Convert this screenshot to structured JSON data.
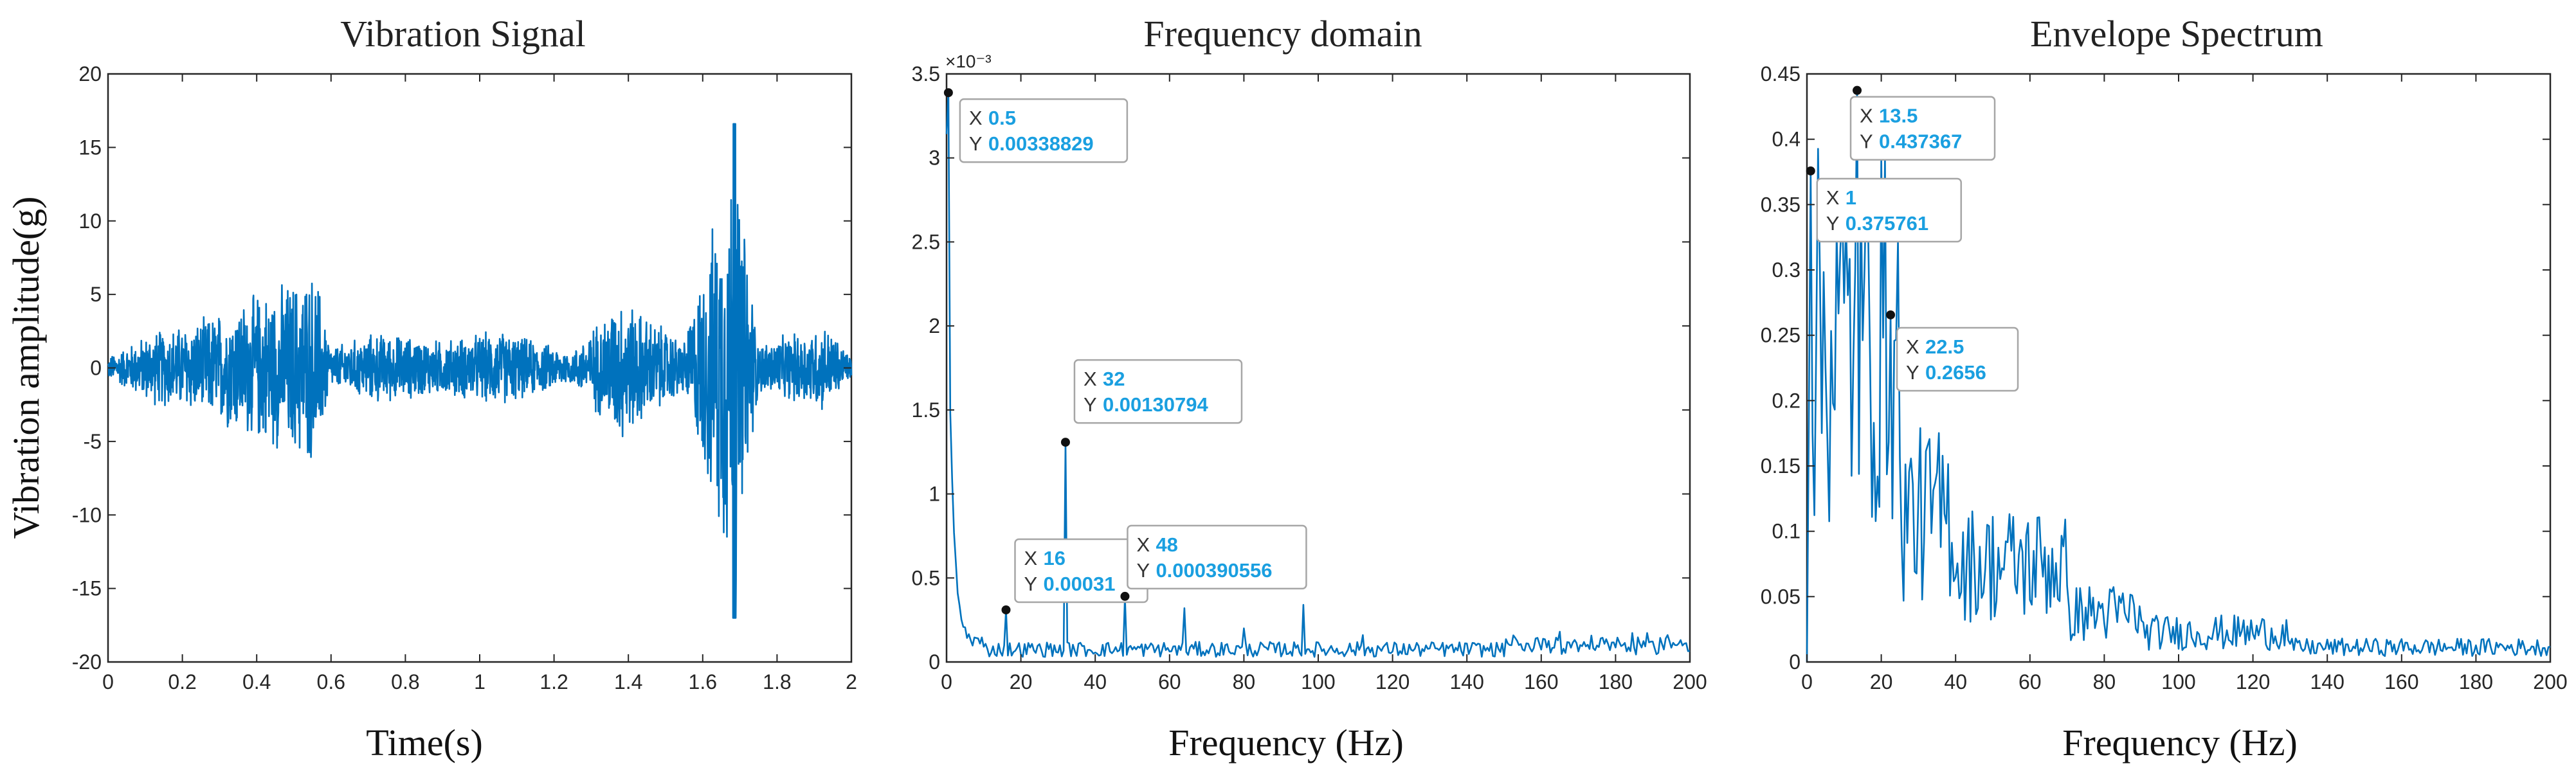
{
  "chart_data": [
    {
      "id": "vibration",
      "type": "line",
      "title": "Vibration Signal",
      "xlabel": "Time(s)",
      "ylabel": "Vibration amplitude(g)",
      "xlim": [
        0,
        2
      ],
      "ylim": [
        -20,
        20
      ],
      "xticks": [
        0,
        0.2,
        0.4,
        0.6,
        0.8,
        1,
        1.2,
        1.4,
        1.6,
        1.8,
        2
      ],
      "xticklabels": [
        "0",
        "0.2",
        "0.4",
        "0.6",
        "0.8",
        "1",
        "1.2",
        "1.4",
        "1.6",
        "1.8",
        "2"
      ],
      "yticks": [
        -20,
        -15,
        -10,
        -5,
        0,
        5,
        10,
        15,
        20
      ],
      "yticklabels": [
        "-20",
        "-15",
        "-10",
        "-5",
        "0",
        "5",
        "10",
        "15",
        "20"
      ],
      "series_color": "#0072bd",
      "envelope": [
        {
          "t": 0.0,
          "amp": 0.8
        },
        {
          "t": 0.12,
          "amp": 2.7
        },
        {
          "t": 0.25,
          "amp": 3.5
        },
        {
          "t": 0.36,
          "amp": 5.0
        },
        {
          "t": 0.56,
          "amp": 7.2
        },
        {
          "t": 0.6,
          "amp": 1.5
        },
        {
          "t": 0.72,
          "amp": 2.6
        },
        {
          "t": 0.9,
          "amp": 2.0
        },
        {
          "t": 1.05,
          "amp": 2.8
        },
        {
          "t": 1.25,
          "amp": 1.2
        },
        {
          "t": 1.38,
          "amp": 5.5
        },
        {
          "t": 1.43,
          "amp": 4.2
        },
        {
          "t": 1.55,
          "amp": 2.0
        },
        {
          "t": 1.685,
          "amp": 16.6
        },
        {
          "t": 1.75,
          "amp": 1.8
        },
        {
          "t": 1.93,
          "amp": 3.2
        },
        {
          "t": 2.0,
          "amp": 0.8
        }
      ]
    },
    {
      "id": "frequency",
      "type": "line",
      "title": "Frequency domain",
      "xlabel": "Frequency (Hz)",
      "ylabel": "",
      "y_multiplier": "×10⁻³",
      "xlim": [
        0,
        200
      ],
      "ylim": [
        0,
        0.0035
      ],
      "xticks": [
        0,
        20,
        40,
        60,
        80,
        100,
        120,
        140,
        160,
        180,
        200
      ],
      "xticklabels": [
        "0",
        "20",
        "40",
        "60",
        "80",
        "100",
        "120",
        "140",
        "160",
        "180",
        "200"
      ],
      "yticks": [
        0,
        0.0005,
        0.001,
        0.0015,
        0.002,
        0.0025,
        0.003,
        0.0035
      ],
      "yticklabels": [
        "0",
        "0.5",
        "1",
        "1.5",
        "2",
        "2.5",
        "3",
        "3.5"
      ],
      "series_color": "#0072bd",
      "peaks": [
        {
          "x": 0.5,
          "y": 0.00338829
        },
        {
          "x": 16,
          "y": 0.00031
        },
        {
          "x": 32,
          "y": 0.00130794
        },
        {
          "x": 48,
          "y": 0.000390556
        },
        {
          "x": 64,
          "y": 0.00032
        },
        {
          "x": 80,
          "y": 0.0002
        },
        {
          "x": 96,
          "y": 0.00034
        },
        {
          "x": 112,
          "y": 0.00016
        },
        {
          "x": 165,
          "y": 0.00018
        },
        {
          "x": 176,
          "y": 0.00014
        },
        {
          "x": 194,
          "y": 0.00016
        }
      ],
      "datatips": [
        {
          "x_label": "X",
          "x_value": "0.5",
          "y_label": "Y",
          "y_value": "0.00338829",
          "x": 0.5,
          "y": 0.00338829
        },
        {
          "x_label": "X",
          "x_value": "32",
          "y_label": "Y",
          "y_value": "0.00130794",
          "x": 32,
          "y": 0.00130794
        },
        {
          "x_label": "X",
          "x_value": "16",
          "y_label": "Y",
          "y_value": "0.00031",
          "x": 16,
          "y": 0.00031
        },
        {
          "x_label": "X",
          "x_value": "48",
          "y_label": "Y",
          "y_value": "0.000390556",
          "x": 48,
          "y": 0.000390556
        }
      ]
    },
    {
      "id": "envelope",
      "type": "line",
      "title": "Envelope Spectrum",
      "xlabel": "Frequency (Hz)",
      "ylabel": "",
      "xlim": [
        0,
        200
      ],
      "ylim": [
        0,
        0.45
      ],
      "xticks": [
        0,
        20,
        40,
        60,
        80,
        100,
        120,
        140,
        160,
        180,
        200
      ],
      "xticklabels": [
        "0",
        "20",
        "40",
        "60",
        "80",
        "100",
        "120",
        "140",
        "160",
        "180",
        "200"
      ],
      "yticks": [
        0,
        0.05,
        0.1,
        0.15,
        0.2,
        0.25,
        0.3,
        0.35,
        0.4,
        0.45
      ],
      "yticklabels": [
        "0",
        "0.05",
        "0.1",
        "0.15",
        "0.2",
        "0.25",
        "0.3",
        "0.35",
        "0.4",
        "0.45"
      ],
      "series_color": "#0072bd",
      "datatips": [
        {
          "x_label": "X",
          "x_value": "13.5",
          "y_label": "Y",
          "y_value": "0.437367",
          "x": 13.5,
          "y": 0.437367
        },
        {
          "x_label": "X",
          "x_value": "1",
          "y_label": "Y",
          "y_value": "0.375761",
          "x": 1,
          "y": 0.375761
        },
        {
          "x_label": "X",
          "x_value": "22.5",
          "y_label": "Y",
          "y_value": "0.2656",
          "x": 22.5,
          "y": 0.2656
        }
      ]
    }
  ]
}
